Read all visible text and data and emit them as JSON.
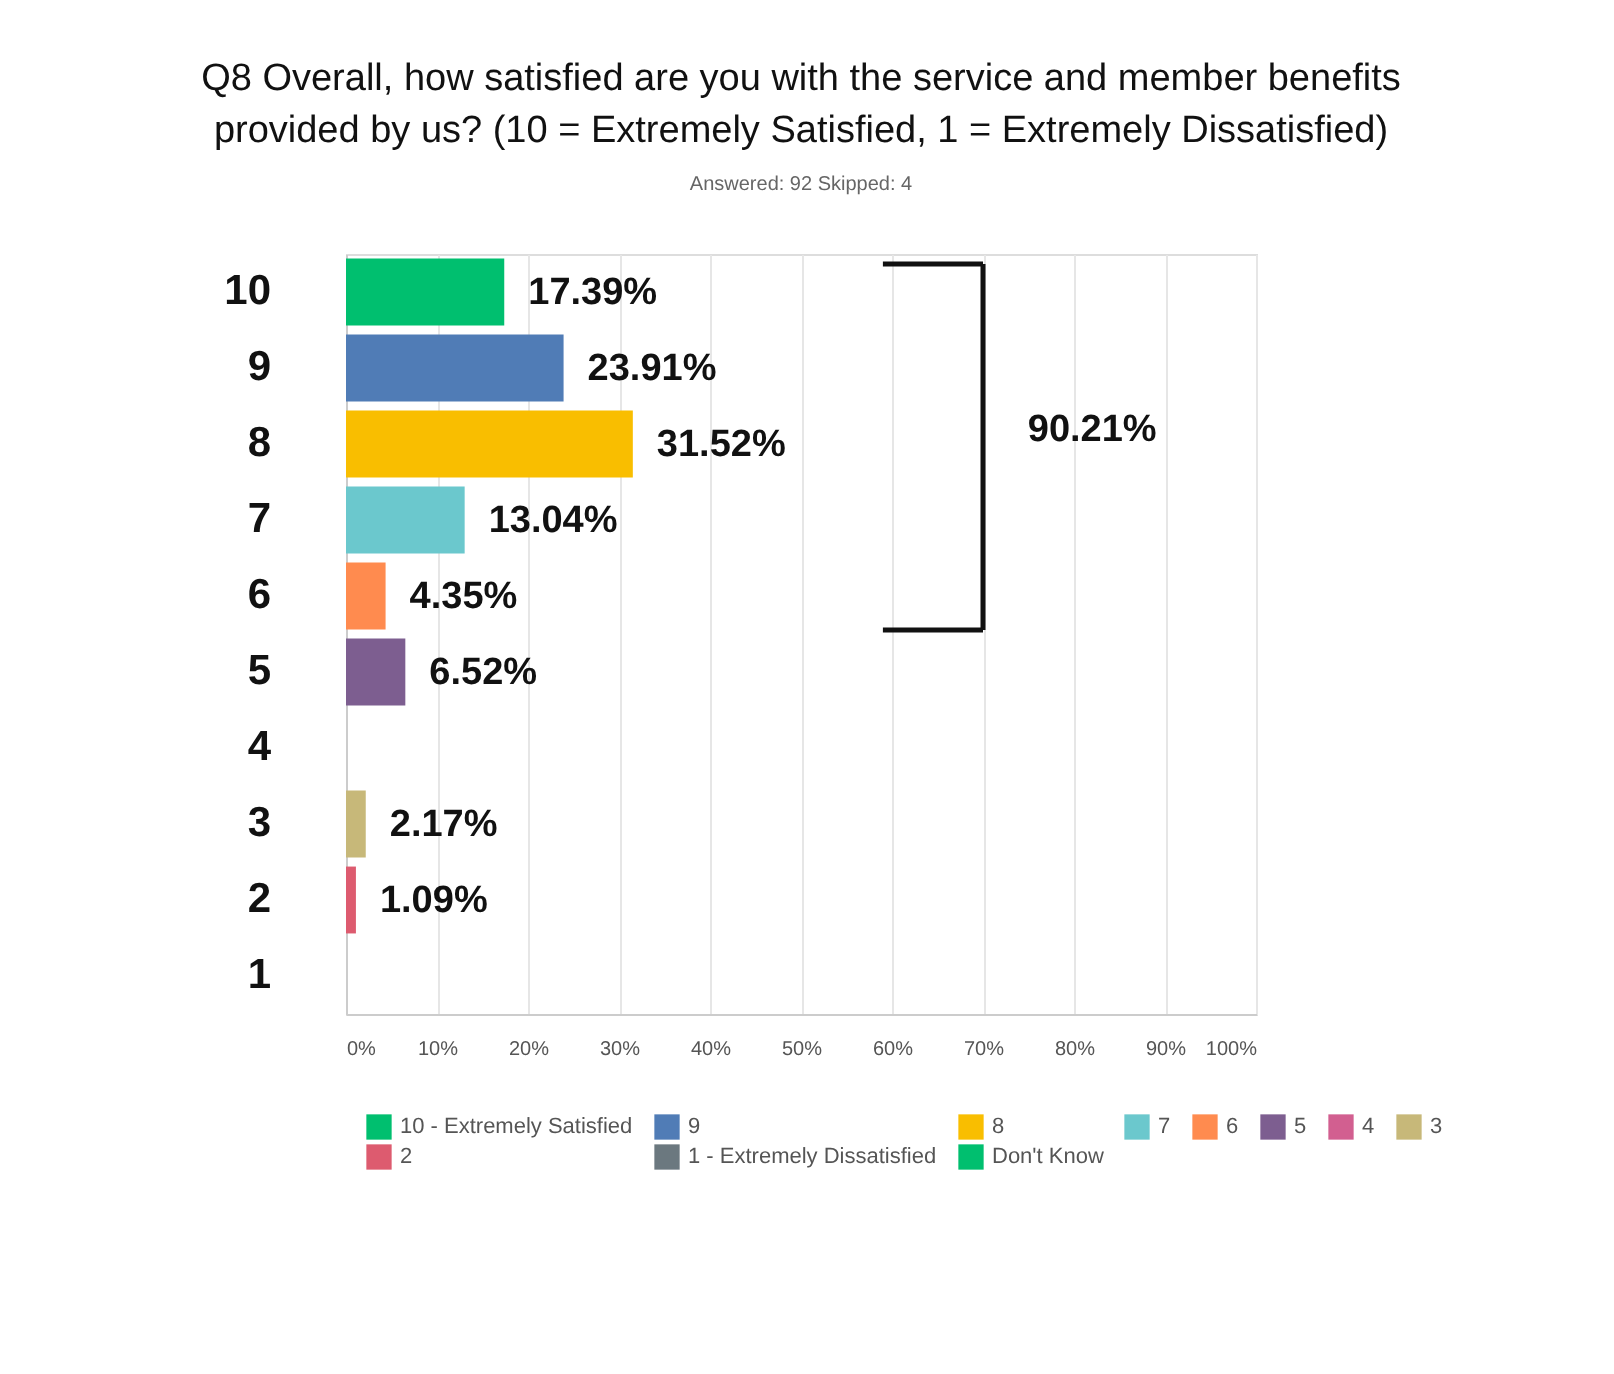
{
  "chart_data": {
    "type": "bar",
    "orientation": "horizontal",
    "title": "Q8 Overall, how satisfied are you with the service and member benefits\nprovided by us? (10 = Extremely Satisfied, 1 = Extremely Dissatisfied)",
    "subtitle": "Answered: 92    Skipped: 4",
    "categories": [
      "10",
      "9",
      "8",
      "7",
      "6",
      "5",
      "4",
      "3",
      "2",
      "1"
    ],
    "series": [
      {
        "name": "10 - Extremely Satisfied",
        "color": "#00bf6f",
        "values": [
          17.39,
          null,
          null,
          null,
          null,
          null,
          null,
          null,
          null,
          null
        ],
        "value_labels": [
          "17.39%",
          null,
          null,
          null,
          null,
          null,
          null,
          null,
          null,
          null
        ]
      },
      {
        "name": "9",
        "color": "#507cb6",
        "values": [
          null,
          23.91,
          null,
          null,
          null,
          null,
          null,
          null,
          null,
          null
        ],
        "value_labels": [
          null,
          "23.91%",
          null,
          null,
          null,
          null,
          null,
          null,
          null,
          null
        ]
      },
      {
        "name": "8",
        "color": "#f9be00",
        "values": [
          null,
          null,
          31.52,
          null,
          null,
          null,
          null,
          null,
          null,
          null
        ],
        "value_labels": [
          null,
          null,
          "31.52%",
          null,
          null,
          null,
          null,
          null,
          null,
          null
        ]
      },
      {
        "name": "7",
        "color": "#6bc8cd",
        "values": [
          null,
          null,
          null,
          13.04,
          null,
          null,
          null,
          null,
          null,
          null
        ],
        "value_labels": [
          null,
          null,
          null,
          "13.04%",
          null,
          null,
          null,
          null,
          null,
          null
        ]
      },
      {
        "name": "6",
        "color": "#ff8b4f",
        "values": [
          null,
          null,
          null,
          null,
          4.35,
          null,
          null,
          null,
          null,
          null
        ],
        "value_labels": [
          null,
          null,
          null,
          null,
          "4.35%",
          null,
          null,
          null,
          null,
          null
        ]
      },
      {
        "name": "5",
        "color": "#7d5e90",
        "values": [
          null,
          null,
          null,
          null,
          null,
          6.52,
          null,
          null,
          null,
          null
        ],
        "value_labels": [
          null,
          null,
          null,
          null,
          null,
          "6.52%",
          null,
          null,
          null,
          null
        ]
      },
      {
        "name": "4",
        "color": "#d25f90",
        "values": [
          null,
          null,
          null,
          null,
          null,
          null,
          0,
          null,
          null,
          null
        ]
      },
      {
        "name": "3",
        "color": "#c7b879",
        "values": [
          null,
          null,
          null,
          null,
          null,
          null,
          null,
          2.17,
          null,
          null
        ],
        "value_labels": [
          null,
          null,
          null,
          null,
          null,
          null,
          null,
          "2.17%",
          null,
          null
        ]
      },
      {
        "name": "2",
        "color": "#dd5b6f",
        "values": [
          null,
          null,
          null,
          null,
          null,
          null,
          null,
          null,
          1.09,
          null
        ],
        "value_labels": [
          null,
          null,
          null,
          null,
          null,
          null,
          null,
          null,
          "1.09%",
          null
        ]
      },
      {
        "name": "1 - Extremely Dissatisfied",
        "color": "#6b787f",
        "values": [
          null,
          null,
          null,
          null,
          null,
          null,
          null,
          null,
          null,
          0
        ]
      },
      {
        "name": "Don't Know",
        "color": "#00bf6f",
        "values": [
          null,
          null,
          null,
          null,
          null,
          null,
          null,
          null,
          null,
          null
        ]
      }
    ],
    "xlim": [
      0,
      100
    ],
    "xticks": [
      {
        "value": 0,
        "label": "0%"
      },
      {
        "value": 10,
        "label": "10%"
      },
      {
        "value": 20,
        "label": "20%"
      },
      {
        "value": 30,
        "label": "30%"
      },
      {
        "value": 40,
        "label": "40%"
      },
      {
        "value": 50,
        "label": "50%"
      },
      {
        "value": 60,
        "label": "60%"
      },
      {
        "value": 70,
        "label": "70%"
      },
      {
        "value": 80,
        "label": "80%"
      },
      {
        "value": 90,
        "label": "90%"
      },
      {
        "value": 100,
        "label": "100%"
      }
    ],
    "grid": "x",
    "legend": "bottom",
    "annotations": [
      "90.21%"
    ]
  }
}
